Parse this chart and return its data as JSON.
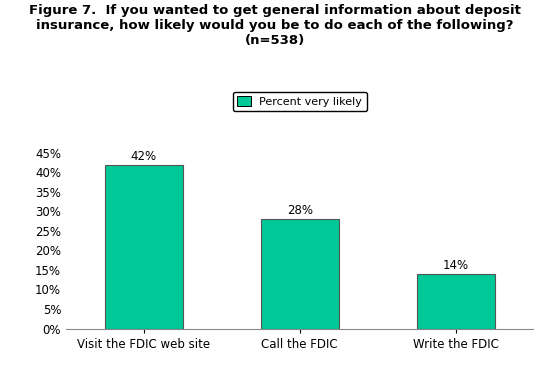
{
  "title_line1": "Figure 7.  If you wanted to get general information about deposit",
  "title_line2": "insurance, how likely would you be to do each of the following?",
  "title_line3": "(n=538)",
  "categories": [
    "Visit the FDIC web site",
    "Call the FDIC",
    "Write the FDIC"
  ],
  "values": [
    42,
    28,
    14
  ],
  "bar_color": "#00C897",
  "bar_edge_color": "#555555",
  "legend_label": "Percent very likely",
  "legend_box_color": "#00C897",
  "ylim": [
    0,
    45
  ],
  "yticks": [
    0,
    5,
    10,
    15,
    20,
    25,
    30,
    35,
    40,
    45
  ],
  "ytick_labels": [
    "0%",
    "5%",
    "10%",
    "15%",
    "20%",
    "25%",
    "30%",
    "35%",
    "40%",
    "45%"
  ],
  "background_color": "#ffffff",
  "title_fontsize": 9.5,
  "label_fontsize": 8.5,
  "tick_fontsize": 8.5,
  "legend_fontsize": 8,
  "bar_width": 0.5
}
